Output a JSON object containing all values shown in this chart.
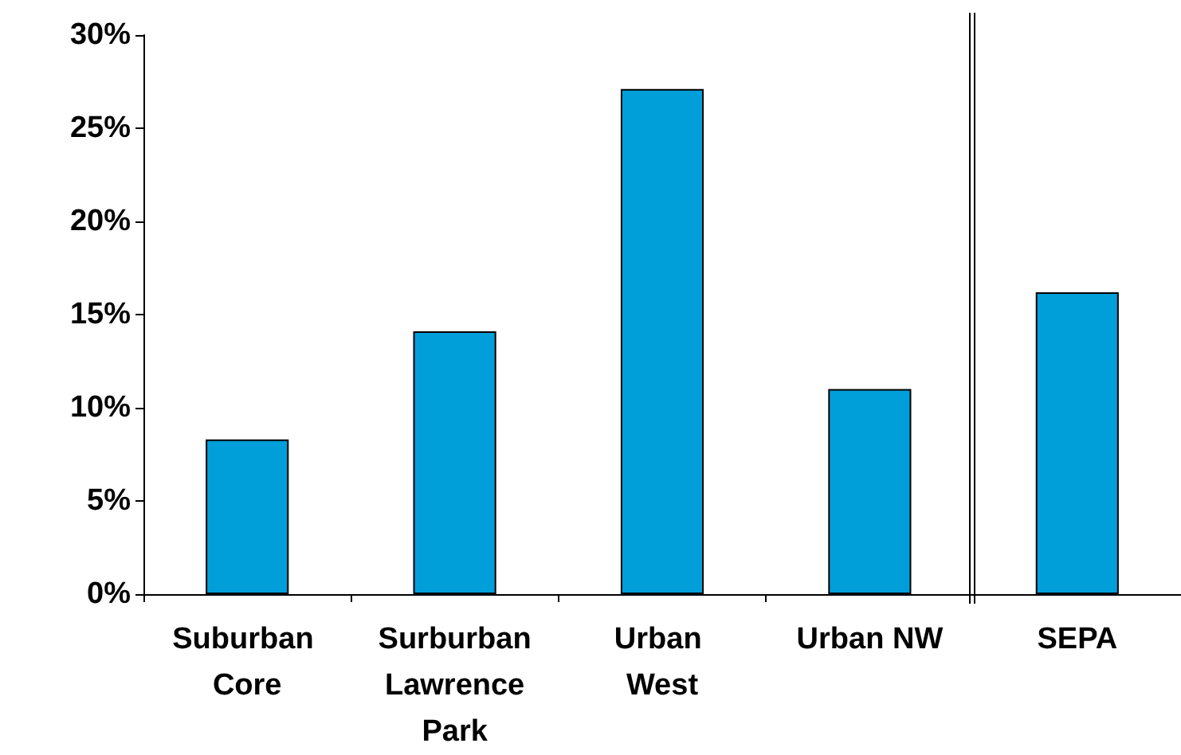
{
  "chart_data": {
    "type": "bar",
    "categories": [
      "Suburban Core",
      "Surburban Lawrence Park",
      "Urban West",
      "Urban NW",
      "SEPA"
    ],
    "values": [
      8.3,
      14.1,
      27.1,
      11.0,
      16.2
    ],
    "color": "#009fd9",
    "ylim": [
      0,
      30
    ],
    "yticks": [
      {
        "value": 0,
        "label": "0%"
      },
      {
        "value": 5,
        "label": "5%"
      },
      {
        "value": 10,
        "label": "10%"
      },
      {
        "value": 15,
        "label": "15%"
      },
      {
        "value": 20,
        "label": "20%"
      },
      {
        "value": 25,
        "label": "25%"
      },
      {
        "value": 30,
        "label": "30%"
      }
    ]
  }
}
